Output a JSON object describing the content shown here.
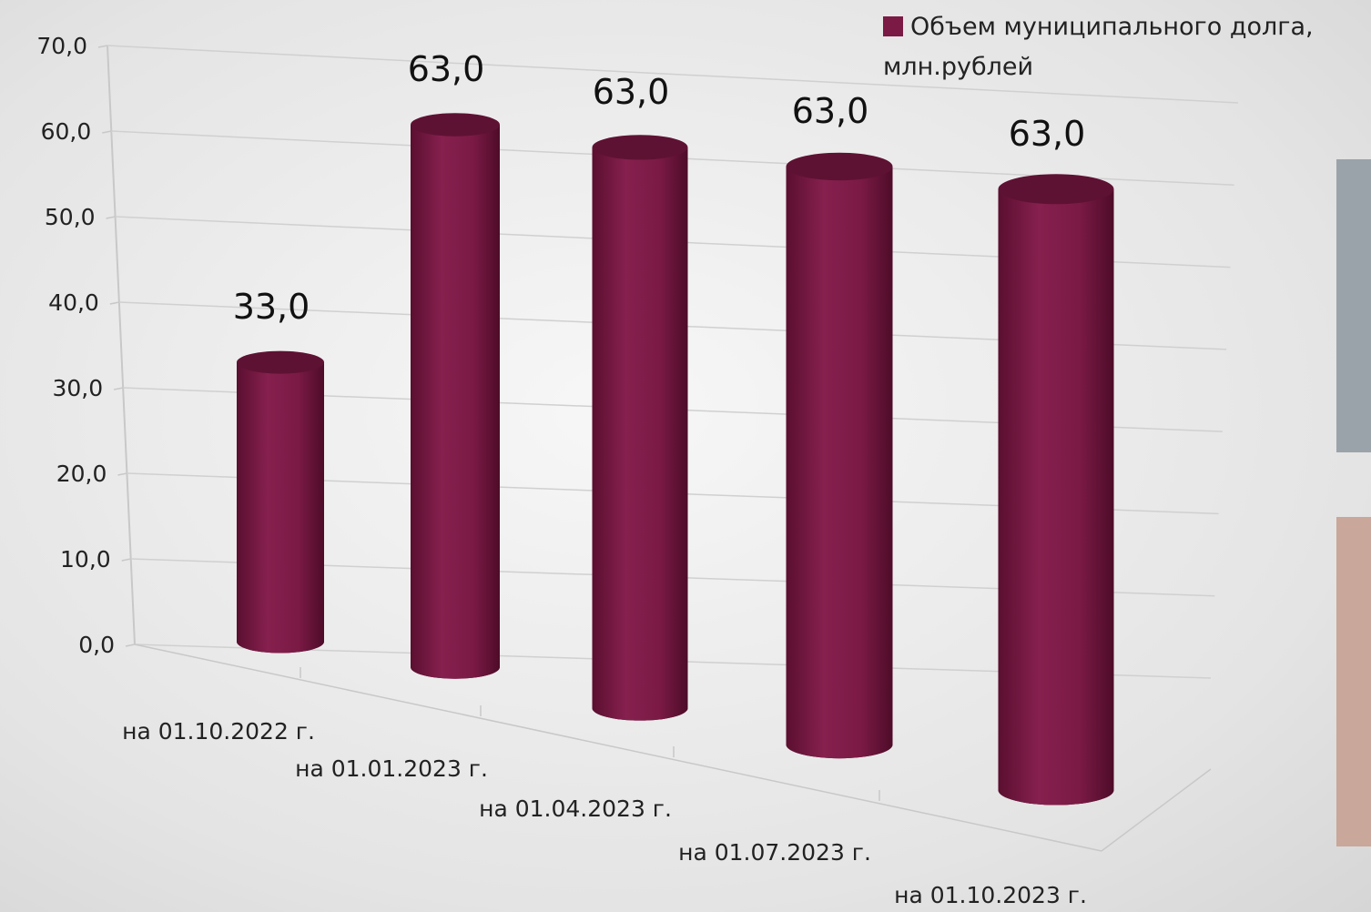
{
  "chart_data": {
    "type": "bar",
    "categories": [
      "на 01.10.2022 г.",
      "на 01.01.2023 г.",
      "на 01.04.2023 г.",
      "на 01.07.2023 г.",
      "на 01.10.2023 г."
    ],
    "series": [
      {
        "name": "Объем муниципального долга, млн.рублей",
        "color": "#7b1a45",
        "values": [
          33,
          63,
          63,
          63,
          63
        ],
        "value_labels": [
          "33,0",
          "63,0",
          "63,0",
          "63,0",
          "63,0"
        ]
      }
    ],
    "ylim": [
      0,
      70
    ],
    "yticks": [
      {
        "value": 0,
        "label": "0,0"
      },
      {
        "value": 10,
        "label": "10,0"
      },
      {
        "value": 20,
        "label": "20,0"
      },
      {
        "value": 30,
        "label": "30,0"
      },
      {
        "value": 40,
        "label": "40,0"
      },
      {
        "value": 50,
        "label": "50,0"
      },
      {
        "value": 60,
        "label": "60,0"
      },
      {
        "value": 70,
        "label": "70,0"
      }
    ],
    "grid": true,
    "legend": "top-right"
  }
}
